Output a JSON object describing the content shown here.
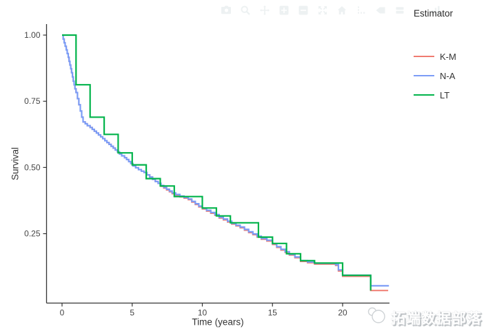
{
  "modebar": {
    "icons": [
      {
        "name": "camera-icon",
        "action": "download-plot-png"
      },
      {
        "name": "zoom-icon",
        "action": "zoom"
      },
      {
        "name": "pan-icon",
        "action": "pan"
      },
      {
        "name": "zoom-in-icon",
        "action": "zoom-in"
      },
      {
        "name": "zoom-out-icon",
        "action": "zoom-out"
      },
      {
        "name": "autoscale-icon",
        "action": "autoscale"
      },
      {
        "name": "home-icon",
        "action": "reset-axes"
      },
      {
        "name": "spikelines-icon",
        "action": "toggle-spike-lines"
      },
      {
        "name": "hover-closest-icon",
        "action": "show-closest-on-hover"
      },
      {
        "name": "hover-compare-icon",
        "action": "compare-data-on-hover"
      },
      {
        "name": "plotly-logo-icon",
        "action": "produced-with-plotly"
      }
    ],
    "icon_color": "#edf1f2"
  },
  "legend": {
    "title": "Estimator",
    "items": [
      {
        "label": "K-M",
        "color": "#F07B70"
      },
      {
        "label": "N-A",
        "color": "#7B9CF6"
      },
      {
        "label": "LT",
        "color": "#00B34A"
      }
    ]
  },
  "watermark": {
    "text": "拓端数据部落",
    "logo": "overlapping-circles-logo"
  },
  "chart_data": {
    "type": "line",
    "subtype": "survival-step-curves",
    "title": "",
    "xlabel": "Time (years)",
    "ylabel": "Survival",
    "legend_title": "Estimator",
    "line_shape": "step-post",
    "grid": false,
    "x_ticks": [
      0,
      5,
      10,
      15,
      20
    ],
    "y_ticks": [
      1.0,
      0.75,
      0.5,
      0.25
    ],
    "y_tick_labels": [
      "1.00",
      "0.75",
      "0.50",
      "0.25"
    ],
    "x_range": [
      -1.1,
      23.4
    ],
    "y_range": [
      -0.01,
      1.04
    ],
    "axis_color": "#333333",
    "tick_label_color": "#444444",
    "series": [
      {
        "name": "K-M",
        "color": "#F07B70",
        "width": 2,
        "extend_to": 23.25,
        "points": [
          [
            0,
            1.0
          ],
          [
            0.08,
            0.985
          ],
          [
            0.15,
            0.971
          ],
          [
            0.22,
            0.958
          ],
          [
            0.3,
            0.944
          ],
          [
            0.37,
            0.93
          ],
          [
            0.44,
            0.916
          ],
          [
            0.5,
            0.901
          ],
          [
            0.56,
            0.887
          ],
          [
            0.62,
            0.873
          ],
          [
            0.68,
            0.858
          ],
          [
            0.74,
            0.842
          ],
          [
            0.8,
            0.826
          ],
          [
            0.86,
            0.812
          ],
          [
            0.92,
            0.797
          ],
          [
            1.0,
            0.783
          ],
          [
            1.1,
            0.76
          ],
          [
            1.2,
            0.737
          ],
          [
            1.3,
            0.713
          ],
          [
            1.4,
            0.69
          ],
          [
            1.5,
            0.672
          ],
          [
            1.65,
            0.665
          ],
          [
            1.8,
            0.658
          ],
          [
            2.0,
            0.651
          ],
          [
            2.15,
            0.644
          ],
          [
            2.3,
            0.637
          ],
          [
            2.45,
            0.63
          ],
          [
            2.6,
            0.623
          ],
          [
            2.75,
            0.616
          ],
          [
            2.9,
            0.609
          ],
          [
            3.05,
            0.601
          ],
          [
            3.2,
            0.594
          ],
          [
            3.35,
            0.587
          ],
          [
            3.5,
            0.58
          ],
          [
            3.65,
            0.573
          ],
          [
            3.8,
            0.566
          ],
          [
            3.95,
            0.559
          ],
          [
            4.1,
            0.551
          ],
          [
            4.25,
            0.544
          ],
          [
            4.45,
            0.537
          ],
          [
            4.6,
            0.53
          ],
          [
            4.75,
            0.522
          ],
          [
            4.9,
            0.515
          ],
          [
            5.05,
            0.506
          ],
          [
            5.25,
            0.499
          ],
          [
            5.45,
            0.492
          ],
          [
            5.65,
            0.486
          ],
          [
            5.85,
            0.481
          ],
          [
            6.05,
            0.472
          ],
          [
            6.25,
            0.464
          ],
          [
            6.45,
            0.455
          ],
          [
            6.65,
            0.447
          ],
          [
            6.85,
            0.44
          ],
          [
            7.05,
            0.429
          ],
          [
            7.25,
            0.422
          ],
          [
            7.45,
            0.415
          ],
          [
            7.65,
            0.408
          ],
          [
            7.85,
            0.401
          ],
          [
            8.1,
            0.395
          ],
          [
            8.4,
            0.389
          ],
          [
            8.7,
            0.384
          ],
          [
            9.0,
            0.378
          ],
          [
            9.25,
            0.369
          ],
          [
            9.5,
            0.36
          ],
          [
            9.75,
            0.351
          ],
          [
            10.0,
            0.343
          ],
          [
            10.3,
            0.335
          ],
          [
            10.6,
            0.327
          ],
          [
            10.9,
            0.319
          ],
          [
            11.2,
            0.309
          ],
          [
            11.5,
            0.302
          ],
          [
            11.8,
            0.294
          ],
          [
            12.1,
            0.286
          ],
          [
            12.4,
            0.279
          ],
          [
            12.7,
            0.272
          ],
          [
            13.0,
            0.263
          ],
          [
            13.3,
            0.254
          ],
          [
            13.6,
            0.246
          ],
          [
            13.9,
            0.237
          ],
          [
            14.2,
            0.229
          ],
          [
            14.6,
            0.222
          ],
          [
            15.0,
            0.209
          ],
          [
            15.3,
            0.198
          ],
          [
            15.6,
            0.188
          ],
          [
            15.9,
            0.179
          ],
          [
            16.2,
            0.169
          ],
          [
            16.6,
            0.159
          ],
          [
            17.0,
            0.145
          ],
          [
            17.5,
            0.14
          ],
          [
            18.0,
            0.135
          ],
          [
            19.5,
            0.13
          ],
          [
            19.7,
            0.109
          ],
          [
            20.0,
            0.089
          ],
          [
            22.0,
            0.035
          ]
        ]
      },
      {
        "name": "N-A",
        "color": "#7B9CF6",
        "width": 2.2,
        "extend_to": 23.3,
        "points": [
          [
            0,
            1.0
          ],
          [
            0.08,
            0.985
          ],
          [
            0.15,
            0.971
          ],
          [
            0.22,
            0.958
          ],
          [
            0.3,
            0.944
          ],
          [
            0.37,
            0.93
          ],
          [
            0.44,
            0.916
          ],
          [
            0.5,
            0.901
          ],
          [
            0.56,
            0.887
          ],
          [
            0.62,
            0.873
          ],
          [
            0.68,
            0.858
          ],
          [
            0.74,
            0.842
          ],
          [
            0.8,
            0.826
          ],
          [
            0.86,
            0.812
          ],
          [
            0.92,
            0.797
          ],
          [
            1.0,
            0.783
          ],
          [
            1.1,
            0.76
          ],
          [
            1.2,
            0.737
          ],
          [
            1.3,
            0.713
          ],
          [
            1.4,
            0.69
          ],
          [
            1.5,
            0.672
          ],
          [
            1.65,
            0.665
          ],
          [
            1.8,
            0.658
          ],
          [
            2.0,
            0.651
          ],
          [
            2.15,
            0.644
          ],
          [
            2.3,
            0.637
          ],
          [
            2.45,
            0.63
          ],
          [
            2.6,
            0.623
          ],
          [
            2.75,
            0.616
          ],
          [
            2.9,
            0.609
          ],
          [
            3.05,
            0.601
          ],
          [
            3.2,
            0.594
          ],
          [
            3.35,
            0.587
          ],
          [
            3.5,
            0.58
          ],
          [
            3.65,
            0.573
          ],
          [
            3.8,
            0.566
          ],
          [
            3.95,
            0.559
          ],
          [
            4.1,
            0.551
          ],
          [
            4.25,
            0.544
          ],
          [
            4.45,
            0.537
          ],
          [
            4.6,
            0.53
          ],
          [
            4.75,
            0.522
          ],
          [
            4.9,
            0.515
          ],
          [
            5.05,
            0.506
          ],
          [
            5.25,
            0.499
          ],
          [
            5.45,
            0.492
          ],
          [
            5.65,
            0.486
          ],
          [
            5.85,
            0.481
          ],
          [
            6.05,
            0.472
          ],
          [
            6.25,
            0.464
          ],
          [
            6.45,
            0.455
          ],
          [
            6.65,
            0.447
          ],
          [
            6.85,
            0.44
          ],
          [
            7.05,
            0.432
          ],
          [
            7.25,
            0.425
          ],
          [
            7.45,
            0.418
          ],
          [
            7.65,
            0.411
          ],
          [
            7.85,
            0.404
          ],
          [
            8.1,
            0.398
          ],
          [
            8.4,
            0.392
          ],
          [
            8.7,
            0.387
          ],
          [
            9.0,
            0.381
          ],
          [
            9.25,
            0.372
          ],
          [
            9.5,
            0.363
          ],
          [
            9.75,
            0.354
          ],
          [
            10.0,
            0.346
          ],
          [
            10.3,
            0.338
          ],
          [
            10.6,
            0.33
          ],
          [
            10.9,
            0.322
          ],
          [
            11.2,
            0.312
          ],
          [
            11.5,
            0.305
          ],
          [
            11.8,
            0.297
          ],
          [
            12.1,
            0.289
          ],
          [
            12.4,
            0.282
          ],
          [
            12.7,
            0.275
          ],
          [
            13.0,
            0.266
          ],
          [
            13.3,
            0.257
          ],
          [
            13.6,
            0.249
          ],
          [
            13.9,
            0.24
          ],
          [
            14.2,
            0.232
          ],
          [
            14.6,
            0.225
          ],
          [
            15.0,
            0.212
          ],
          [
            15.3,
            0.201
          ],
          [
            15.6,
            0.191
          ],
          [
            15.9,
            0.182
          ],
          [
            16.2,
            0.172
          ],
          [
            16.6,
            0.162
          ],
          [
            17.0,
            0.148
          ],
          [
            17.5,
            0.143
          ],
          [
            18.0,
            0.138
          ],
          [
            19.5,
            0.133
          ],
          [
            19.7,
            0.113
          ],
          [
            20.0,
            0.093
          ],
          [
            22.0,
            0.053
          ]
        ]
      },
      {
        "name": "LT",
        "color": "#00B34A",
        "width": 2.2,
        "extend_to": null,
        "points": [
          [
            0,
            1.0
          ],
          [
            1,
            0.8125
          ],
          [
            2,
            0.69
          ],
          [
            3,
            0.625
          ],
          [
            4,
            0.555
          ],
          [
            5,
            0.51
          ],
          [
            6,
            0.458
          ],
          [
            7,
            0.43
          ],
          [
            8,
            0.39
          ],
          [
            10,
            0.347
          ],
          [
            11,
            0.317
          ],
          [
            12,
            0.291
          ],
          [
            14,
            0.237
          ],
          [
            15,
            0.213
          ],
          [
            16,
            0.174
          ],
          [
            17,
            0.148
          ],
          [
            18,
            0.139
          ],
          [
            20,
            0.0925
          ],
          [
            22,
            0.035
          ]
        ]
      }
    ]
  }
}
